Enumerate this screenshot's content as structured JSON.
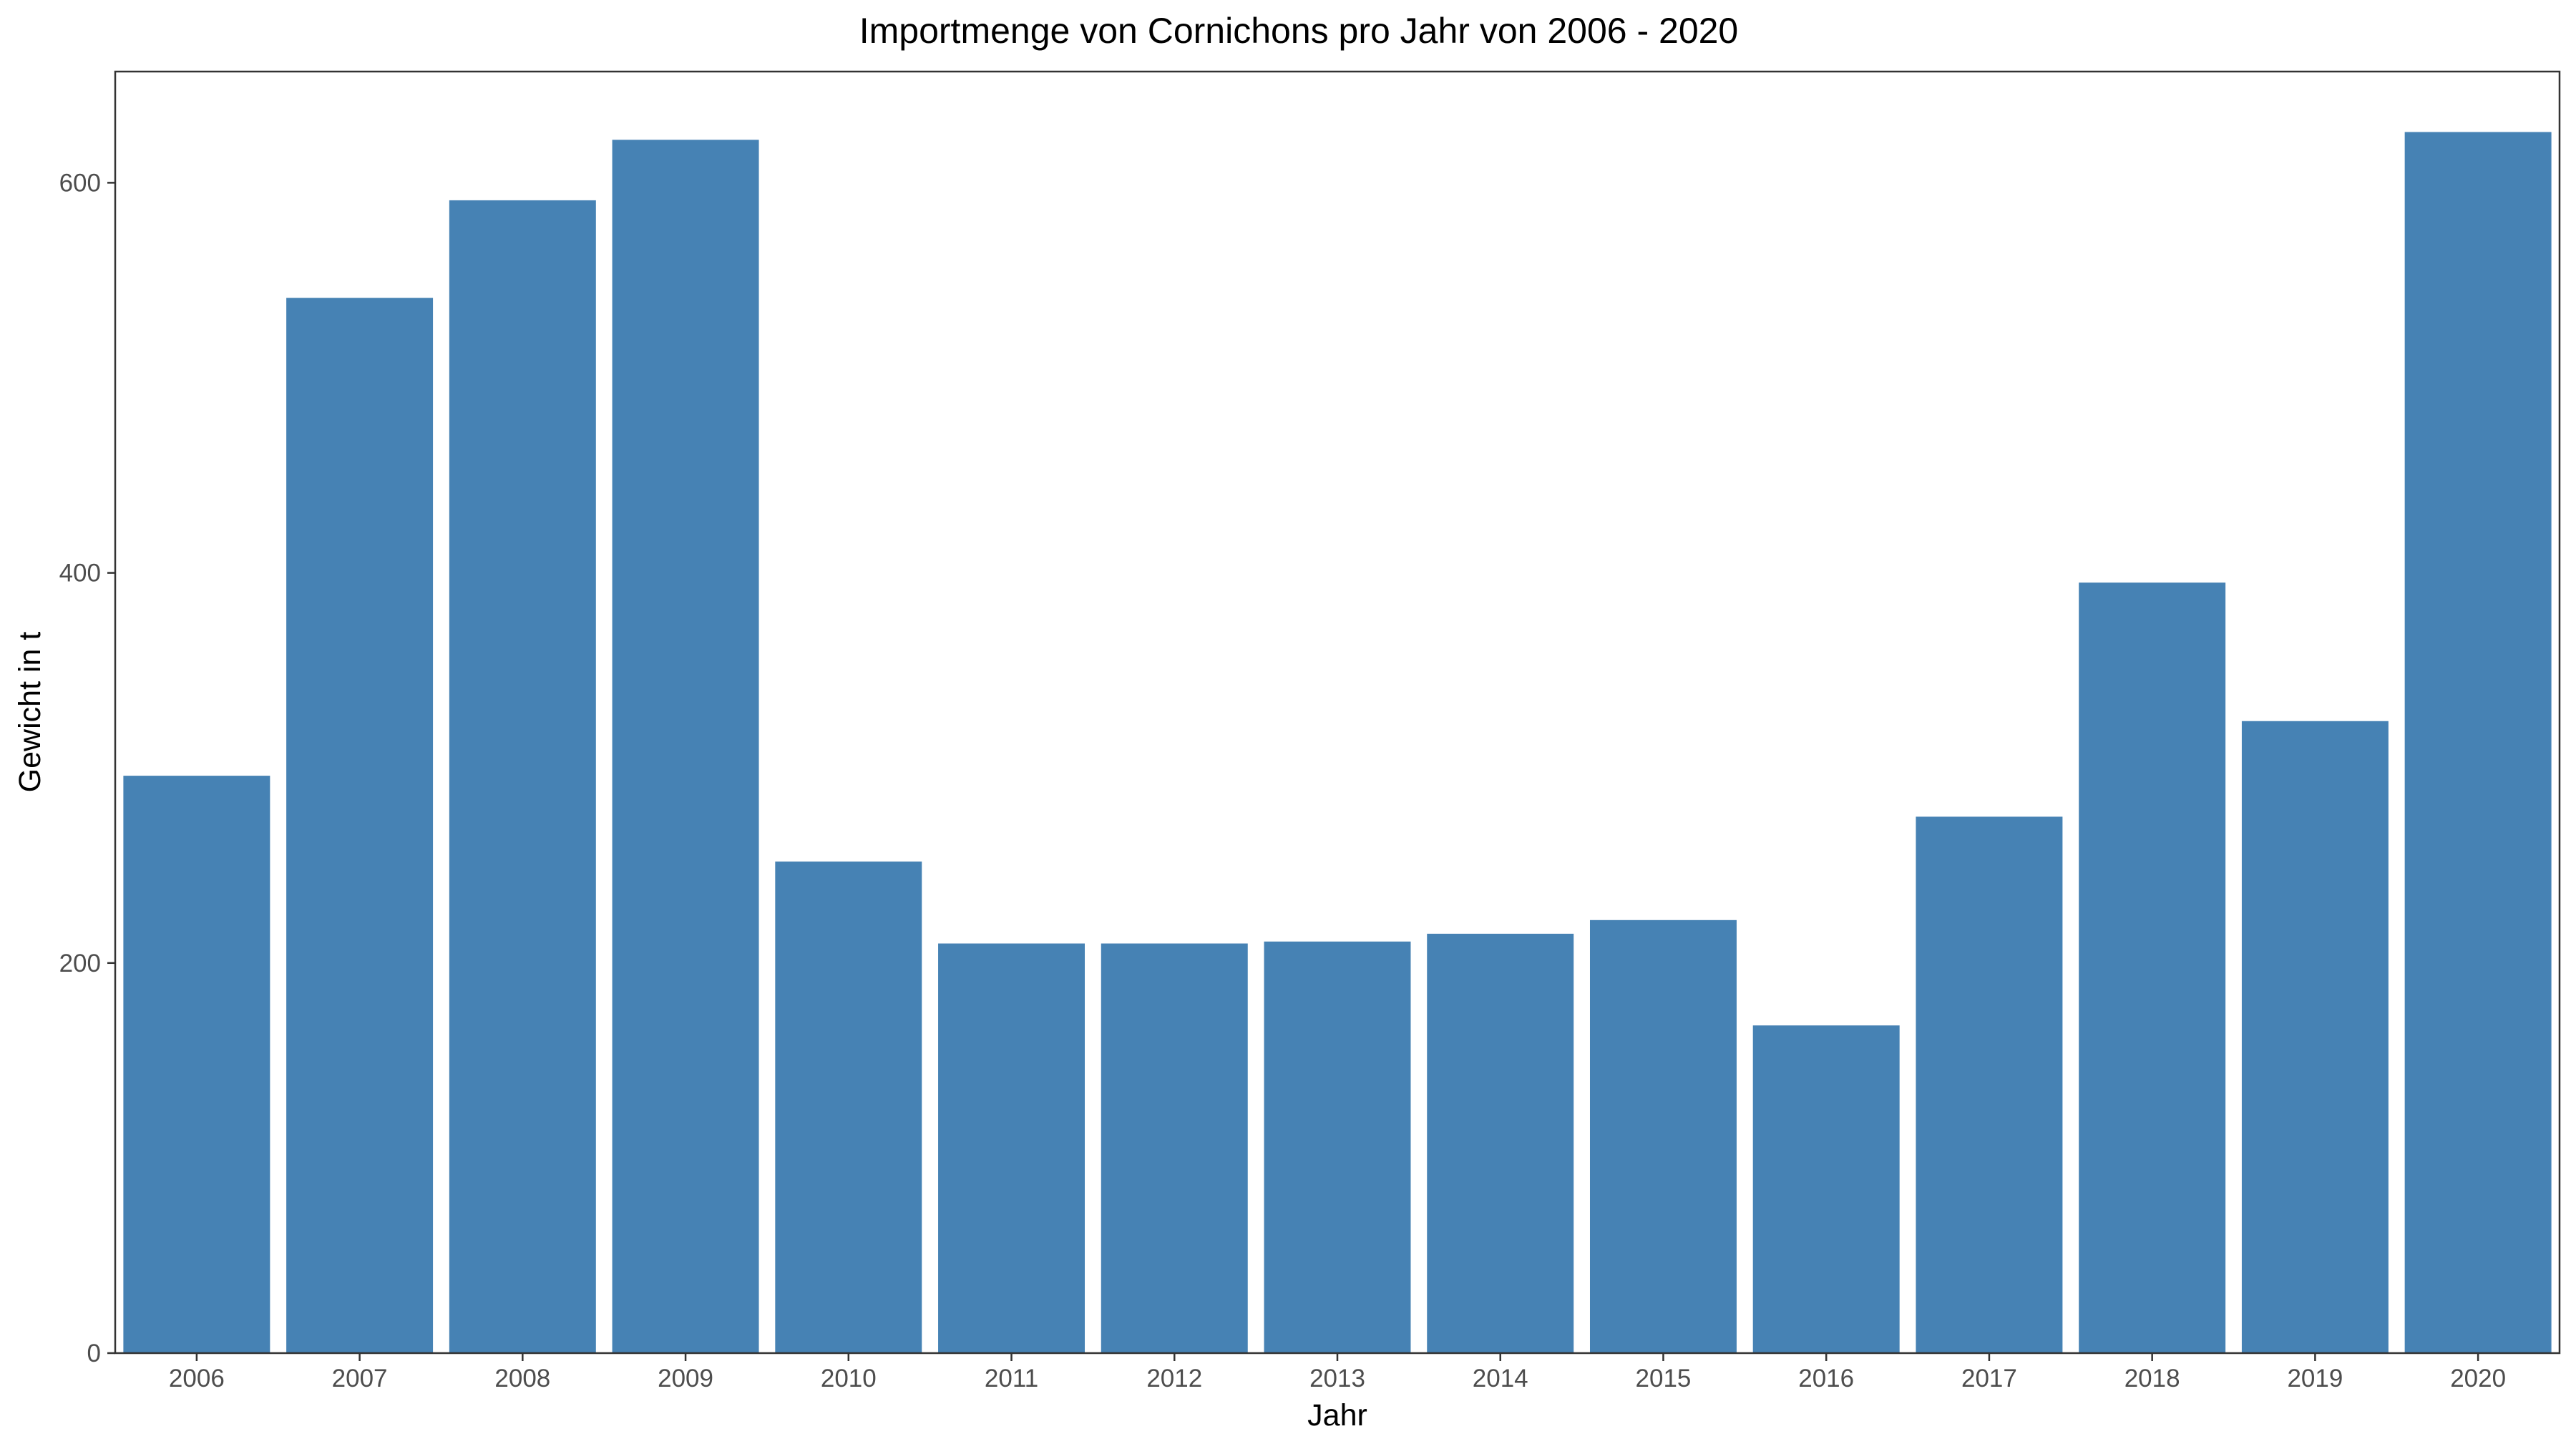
{
  "chart_data": {
    "type": "bar",
    "title": "Importmenge von Cornichons pro Jahr von 2006 - 2020",
    "xlabel": "Jahr",
    "ylabel": "Gewicht in t",
    "categories": [
      "2006",
      "2007",
      "2008",
      "2009",
      "2010",
      "2011",
      "2012",
      "2013",
      "2014",
      "2015",
      "2016",
      "2017",
      "2018",
      "2019",
      "2020"
    ],
    "values": [
      296,
      541,
      591,
      622,
      252,
      210,
      210,
      211,
      215,
      222,
      168,
      275,
      395,
      324,
      626
    ],
    "ylim": [
      0,
      657
    ],
    "yticks": [
      0,
      200,
      400,
      600
    ],
    "ytick_labels": [
      "0",
      "200",
      "400",
      "600"
    ],
    "bar_color": "#4682B4",
    "grid": false,
    "legend": "none"
  }
}
